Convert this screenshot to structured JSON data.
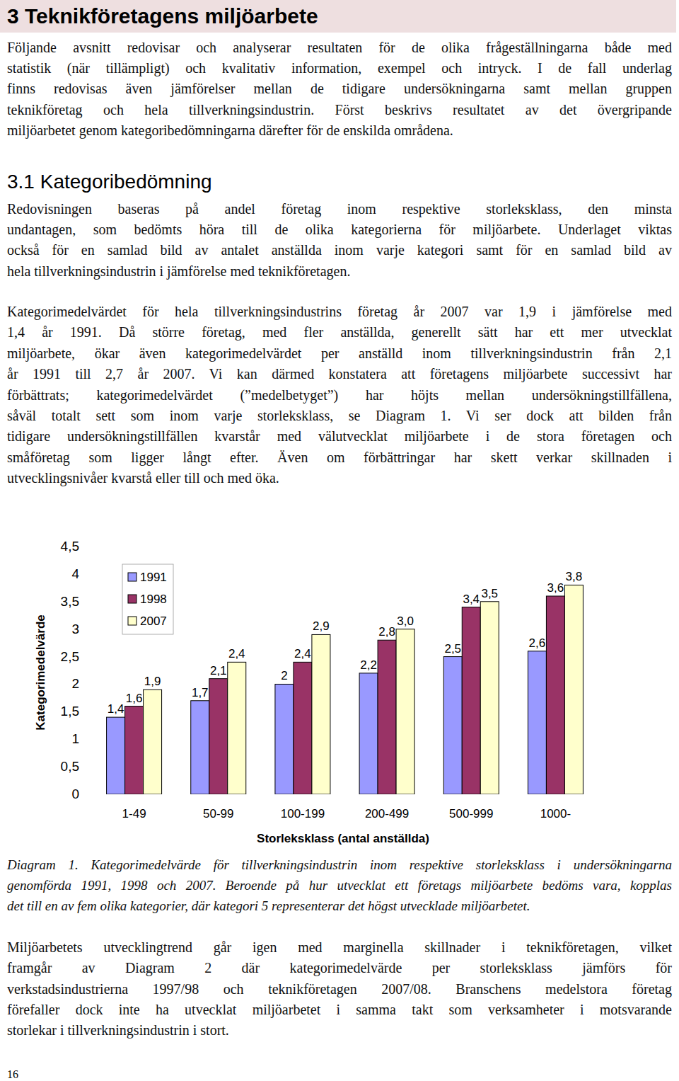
{
  "title": "3 Teknikföretagens miljöarbete",
  "intro": {
    "lines": [
      "Följande avsnitt redovisar och analyserar resultaten för de olika frågeställningarna både med",
      "statistik (när tillämpligt) och kvalitativ information, exempel och intryck. I de fall underlag",
      "finns redovisas även jämförelser mellan de tidigare undersökningarna samt mellan gruppen",
      "teknikföretag och hela tillverkningsindustrin. Först beskrivs resultatet av det övergripande",
      "miljöarbetet genom kategoribedömningarna därefter för de enskilda områdena."
    ]
  },
  "section_heading": "3.1 Kategoribedömning",
  "paragraphs": [
    {
      "lines": [
        "Redovisningen baseras på andel företag inom respektive storleksklass, den minsta",
        "undantagen, som bedömts höra till de olika kategorierna för miljöarbete. Underlaget viktas",
        "också för en samlad bild av antalet anställda inom varje kategori samt för en samlad bild av",
        "hela tillverkningsindustrin i jämförelse med teknikföretagen."
      ]
    },
    {
      "lines": [
        "Kategorimedelvärdet för hela tillverkningsindustrins företag år 2007 var 1,9 i jämförelse med",
        "1,4 år 1991. Då större företag, med fler anställda, generellt sätt har ett mer utvecklat",
        "miljöarbete, ökar även kategorimedelvärdet per anställd inom tillverkningsindustrin från 2,1",
        "år 1991 till 2,7 år 2007. Vi kan därmed konstatera att företagens miljöarbete successivt har",
        "förbättrats; kategorimedelvärdet (”medelbetyget”) har höjts mellan undersökningstillfällena,",
        "såväl totalt sett som inom varje storleksklass, se Diagram 1. Vi ser dock att bilden från",
        "tidigare undersökningstillfällen kvarstår med välutvecklat miljöarbete i de stora företagen och",
        "småföretag som ligger långt efter. Även om förbättringar har skett verkar skillnaden i",
        "utvecklingsnivåer kvarstå eller till och med öka."
      ]
    }
  ],
  "chart_data": {
    "type": "bar",
    "x_label": "Storleksklass (antal anställda)",
    "y_label": "Kategorimedelvärde",
    "categories": [
      "1-49",
      "50-99",
      "100-199",
      "200-499",
      "500-999",
      "1000-"
    ],
    "series": [
      {
        "name": "1991",
        "color": "#9999ff",
        "values": [
          1.4,
          1.7,
          2,
          2.2,
          2.5,
          2.6
        ],
        "value_labels": [
          "1,4",
          "1,7",
          "2",
          "2,2",
          "2,5",
          "2,6"
        ]
      },
      {
        "name": "1998",
        "color": "#993366",
        "values": [
          1.6,
          2.1,
          2.4,
          2.8,
          3.4,
          3.6
        ],
        "value_labels": [
          "1,6",
          "2,1",
          "2,4",
          "2,8",
          "3,4",
          "3,6"
        ]
      },
      {
        "name": "2007",
        "color": "#ffffcc",
        "values": [
          1.9,
          2.4,
          2.9,
          3.0,
          3.5,
          3.8
        ],
        "value_labels": [
          "1,9",
          "2,4",
          "2,9",
          "3,0",
          "3,5",
          "3,8"
        ]
      }
    ],
    "ylim": [
      0,
      4.5
    ],
    "yticks": [
      0,
      {
        "value": 0.5,
        "label": "0,5"
      },
      1,
      {
        "value": 1.5,
        "label": "1,5"
      },
      2,
      {
        "value": 2.5,
        "label": "2,5"
      },
      3,
      {
        "value": 3.5,
        "label": "3,5"
      },
      4,
      {
        "value": 4.5,
        "label": "4,5"
      }
    ],
    "grid": false,
    "legend": "upper left",
    "data_labels": true
  },
  "caption": {
    "lines": [
      "Diagram 1. Kategorimedelvärde för tillverkningsindustrin inom respektive storleksklass i undersökningarna",
      "genomförda 1991, 1998 och 2007. Beroende på hur utvecklat ett företags miljöarbete bedöms vara, kopplas",
      "det till en av fem olika kategorier, där kategori 5 representerar det högst utvecklade miljöarbetet."
    ]
  },
  "closing": {
    "lines": [
      "Miljöarbetets utvecklingtrend går igen med marginella skillnader i teknikföretagen, vilket",
      "framgår av Diagram 2 där kategorimedelvärde per storleksklass jämförs för",
      "verkstadsindustrierna 1997/98 och teknikföretagen 2007/08. Branschens medelstora företag",
      "förefaller dock inte ha utvecklat miljöarbetet i samma takt som verksamheter i motsvarande",
      "storlekar i tillverkningsindustrin i stort."
    ]
  },
  "page_number": "16"
}
